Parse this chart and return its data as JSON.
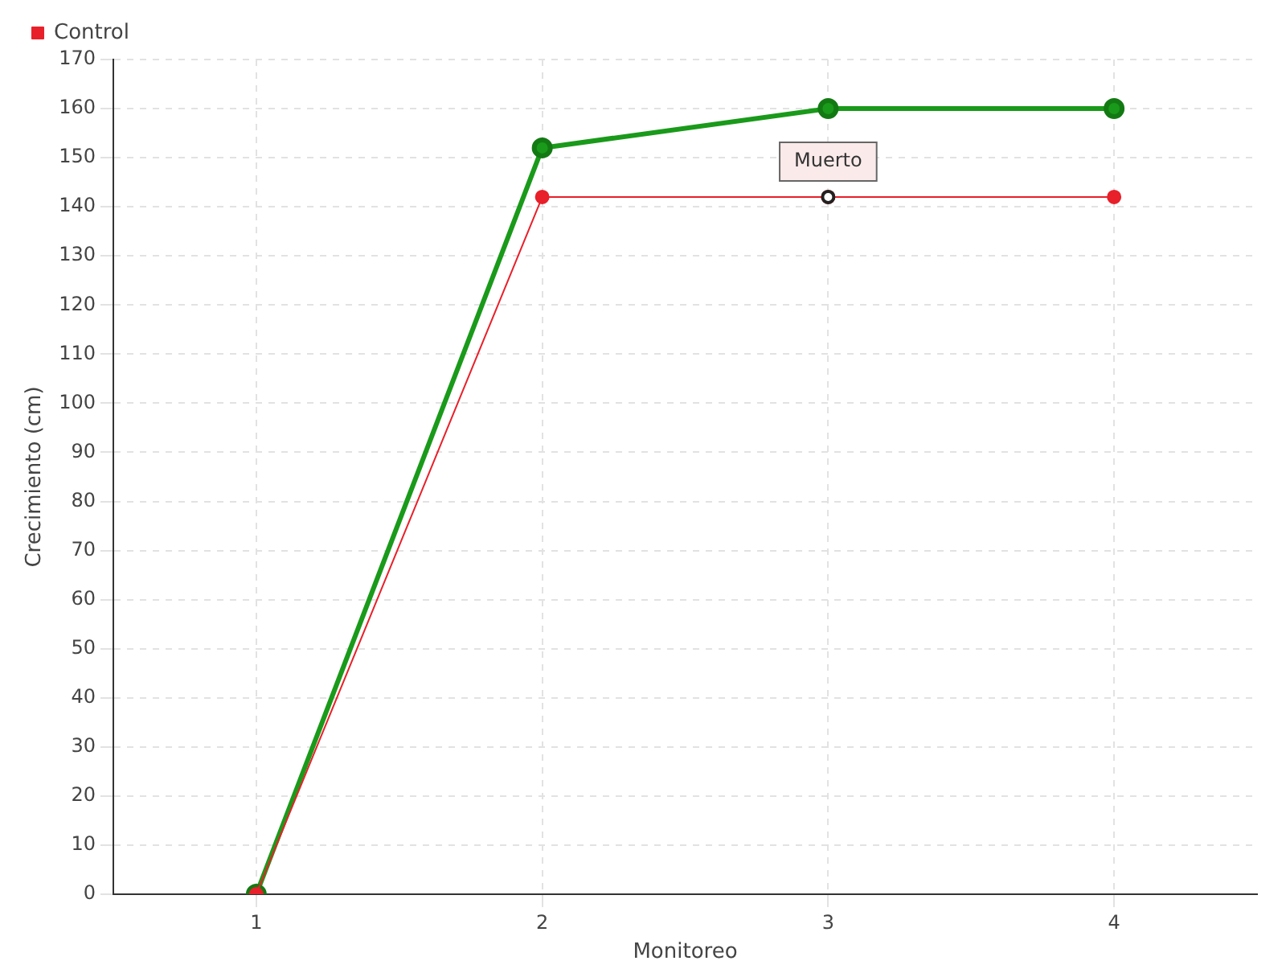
{
  "chart_data": {
    "type": "line",
    "xlabel": "Monitoreo",
    "ylabel": "Crecimiento (cm)",
    "categories": [
      "1",
      "2",
      "3",
      "4"
    ],
    "series": [
      {
        "color": "#1a9a1a",
        "values": [
          0,
          152,
          160,
          160
        ]
      },
      {
        "name": "Control",
        "color": "#e8202a",
        "values": [
          0,
          142,
          142,
          142
        ]
      }
    ],
    "ylim": [
      0,
      170
    ],
    "yticks": [
      0,
      10,
      20,
      30,
      40,
      50,
      60,
      70,
      80,
      90,
      100,
      110,
      120,
      130,
      140,
      150,
      160,
      170
    ],
    "grid": true,
    "legend": "top left",
    "marker": "circle",
    "line_style": "solid",
    "annotations": [
      {
        "text": "Muerto",
        "x": "3",
        "y": 142
      }
    ]
  }
}
